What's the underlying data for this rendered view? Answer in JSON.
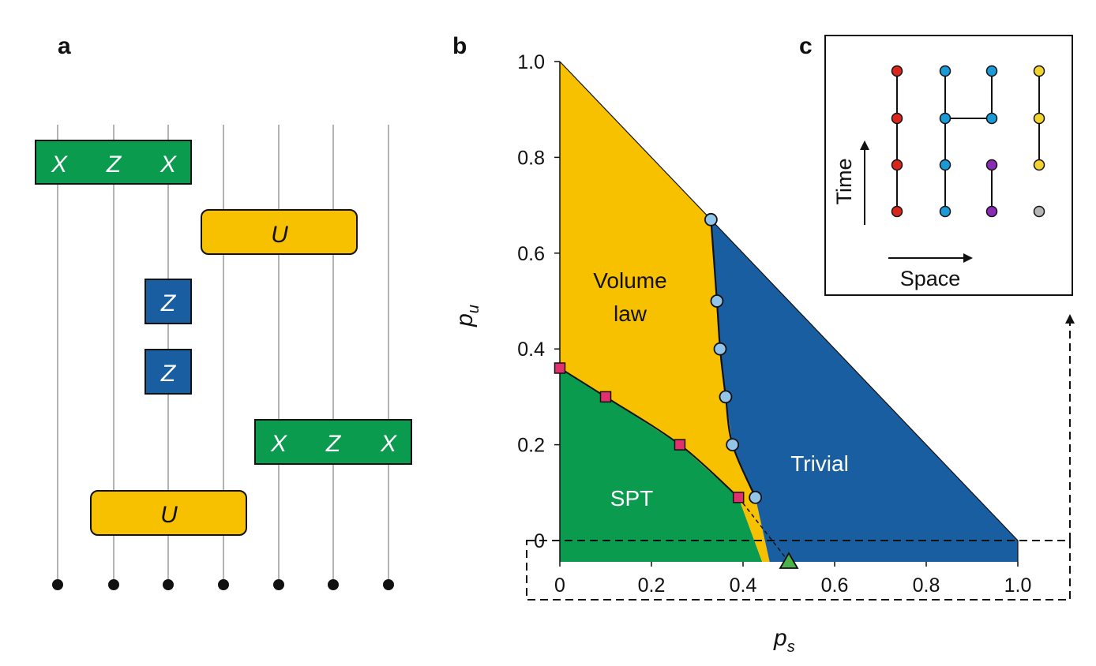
{
  "colors": {
    "green": "#0a9b4f",
    "yellow": "#f8c100",
    "blue": "#1a5ea2",
    "wire": "#b3b3b3",
    "boundary_point": "#92c5e8",
    "spt_point": "#e0306e",
    "triangle": "#4db14a"
  },
  "panel_a": {
    "label": "a",
    "gates": [
      {
        "type": "green",
        "labels": [
          "X",
          "Z",
          "X"
        ]
      },
      {
        "type": "yellow",
        "labels": [
          "U"
        ]
      },
      {
        "type": "blue",
        "labels": [
          "Z"
        ]
      },
      {
        "type": "blue",
        "labels": [
          "Z"
        ]
      },
      {
        "type": "green",
        "labels": [
          "X",
          "Z",
          "X"
        ]
      },
      {
        "type": "yellow",
        "labels": [
          "U"
        ]
      }
    ],
    "qubit_count": 7
  },
  "panel_b": {
    "label": "b",
    "phases": {
      "volume": [
        "Volume",
        "law"
      ],
      "trivial": "Trivial",
      "spt": "SPT"
    },
    "chart_data": {
      "type": "scatter",
      "xlabel": "p",
      "xlabel_sub": "s",
      "ylabel": "p",
      "ylabel_sub": "u",
      "xlim": [
        0,
        1.0
      ],
      "ylim": [
        0,
        1.0
      ],
      "x_ticks": [
        "0",
        "0.2",
        "0.4",
        "0.6",
        "0.8",
        "1.0"
      ],
      "y_ticks": [
        "0",
        "0.2",
        "0.4",
        "0.6",
        "0.8",
        "1.0"
      ],
      "series": [
        {
          "marker": "circle",
          "points": [
            [
              0.33,
              0.67
            ],
            [
              0.343,
              0.5
            ],
            [
              0.35,
              0.4
            ],
            [
              0.362,
              0.3
            ],
            [
              0.377,
              0.2
            ],
            [
              0.427,
              0.09
            ]
          ]
        },
        {
          "marker": "square",
          "points": [
            [
              0.0,
              0.36
            ],
            [
              0.1,
              0.3
            ],
            [
              0.262,
              0.2
            ],
            [
              0.39,
              0.09
            ]
          ]
        },
        {
          "marker": "triangle",
          "points": [
            [
              0.5,
              0.0
            ]
          ]
        }
      ]
    }
  },
  "panel_c": {
    "label": "c",
    "time_label": "Time",
    "space_label": "Space",
    "columns": [
      [
        "#d9261c",
        "#d9261c",
        "#d9261c",
        "#d9261c"
      ],
      [
        "#1b9ad6",
        "#1b9ad6",
        "#1b9ad6",
        "#1b9ad6"
      ],
      [
        "#8a2bb5",
        "#8a2bb5",
        "#1b9ad6",
        "#1b9ad6"
      ],
      [
        "#b5b5b5",
        "#f2d22e",
        "#f2d22e",
        "#f2d22e"
      ]
    ]
  }
}
